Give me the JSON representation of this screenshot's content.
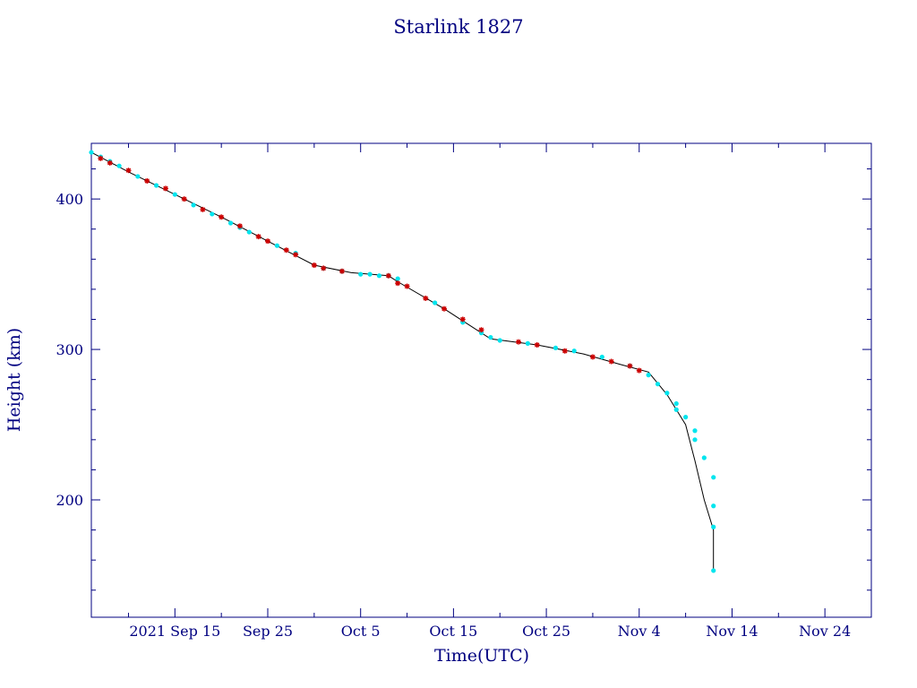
{
  "chart_data": {
    "type": "scatter",
    "title": "Starlink 1827",
    "xlabel": "Time(UTC)",
    "ylabel": "Height (km)",
    "x_unit": "days",
    "xlim": [
      "2021-09-06",
      "2021-11-29"
    ],
    "ylim": [
      122,
      437
    ],
    "x_ticks": [
      {
        "date": "2021-09-15",
        "label": "2021 Sep 15"
      },
      {
        "date": "2021-09-25",
        "label": "Sep 25"
      },
      {
        "date": "2021-10-05",
        "label": "Oct  5"
      },
      {
        "date": "2021-10-15",
        "label": "Oct 15"
      },
      {
        "date": "2021-10-25",
        "label": "Oct 25"
      },
      {
        "date": "2021-11-04",
        "label": "Nov  4"
      },
      {
        "date": "2021-11-14",
        "label": "Nov 14"
      },
      {
        "date": "2021-11-24",
        "label": "Nov 24"
      }
    ],
    "y_ticks": [
      200,
      300,
      400
    ],
    "y_minor_step": 20,
    "grid": false,
    "colors": {
      "axes": "#000080",
      "line": "#000000",
      "series_a": "#00e5ee",
      "series_b": "#cc0000"
    },
    "line": {
      "x": [
        "2021-09-06",
        "2021-09-10",
        "2021-09-15",
        "2021-09-20",
        "2021-09-25",
        "2021-09-30",
        "2021-10-04",
        "2021-10-08",
        "2021-10-09",
        "2021-10-14",
        "2021-10-19",
        "2021-10-24",
        "2021-10-29",
        "2021-11-02",
        "2021-11-05",
        "2021-11-07",
        "2021-11-09",
        "2021-11-10",
        "2021-11-11",
        "2021-11-12",
        "2021-11-12"
      ],
      "y": [
        431,
        418,
        403,
        388,
        372,
        356,
        351,
        349,
        345,
        327,
        307,
        303,
        297,
        290,
        285,
        270,
        250,
        226,
        200,
        180,
        153
      ]
    },
    "series": [
      {
        "marker": "cyan-dot",
        "x": [
          "2021-09-06",
          "2021-09-07",
          "2021-09-08",
          "2021-09-09",
          "2021-09-11",
          "2021-09-13",
          "2021-09-15",
          "2021-09-17",
          "2021-09-19",
          "2021-09-21",
          "2021-09-22",
          "2021-09-23",
          "2021-09-26",
          "2021-09-28",
          "2021-10-01",
          "2021-10-03",
          "2021-10-05",
          "2021-10-06",
          "2021-10-07",
          "2021-10-08",
          "2021-10-09",
          "2021-10-13",
          "2021-10-16",
          "2021-10-18",
          "2021-10-19",
          "2021-10-20",
          "2021-10-23",
          "2021-10-26",
          "2021-10-28",
          "2021-10-31",
          "2021-11-03",
          "2021-11-05",
          "2021-11-06",
          "2021-11-07",
          "2021-11-08",
          "2021-11-08",
          "2021-11-09",
          "2021-11-10",
          "2021-11-10",
          "2021-11-11",
          "2021-11-12",
          "2021-11-12",
          "2021-11-12",
          "2021-11-12"
        ],
        "y": [
          431,
          428,
          425,
          422,
          415,
          409,
          403,
          396,
          390,
          384,
          381,
          378,
          369,
          364,
          354,
          352,
          350,
          350,
          349,
          349,
          347,
          331,
          318,
          311,
          308,
          306,
          304,
          301,
          299,
          295,
          289,
          283,
          277,
          271,
          264,
          260,
          255,
          246,
          240,
          228,
          215,
          196,
          182,
          153
        ]
      },
      {
        "marker": "red-star",
        "x": [
          "2021-09-07",
          "2021-09-08",
          "2021-09-10",
          "2021-09-12",
          "2021-09-14",
          "2021-09-16",
          "2021-09-18",
          "2021-09-20",
          "2021-09-22",
          "2021-09-24",
          "2021-09-25",
          "2021-09-27",
          "2021-09-28",
          "2021-09-30",
          "2021-10-01",
          "2021-10-03",
          "2021-10-08",
          "2021-10-09",
          "2021-10-10",
          "2021-10-12",
          "2021-10-14",
          "2021-10-16",
          "2021-10-18",
          "2021-10-22",
          "2021-10-24",
          "2021-10-27",
          "2021-10-30",
          "2021-11-01",
          "2021-11-03",
          "2021-11-04"
        ],
        "y": [
          427,
          424,
          419,
          412,
          407,
          400,
          393,
          388,
          382,
          375,
          372,
          366,
          363,
          356,
          354,
          352,
          349,
          344,
          342,
          334,
          327,
          320,
          313,
          305,
          303,
          299,
          295,
          292,
          289,
          286
        ]
      }
    ]
  }
}
